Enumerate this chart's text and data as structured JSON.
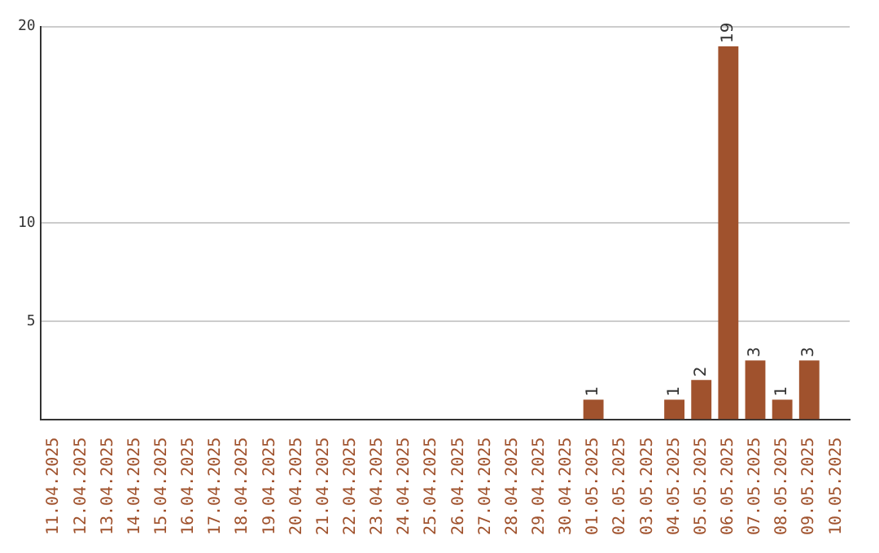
{
  "chart_data": {
    "type": "bar",
    "categories": [
      "11.04.2025",
      "12.04.2025",
      "13.04.2025",
      "14.04.2025",
      "15.04.2025",
      "16.04.2025",
      "17.04.2025",
      "18.04.2025",
      "19.04.2025",
      "20.04.2025",
      "21.04.2025",
      "22.04.2025",
      "23.04.2025",
      "24.04.2025",
      "25.04.2025",
      "26.04.2025",
      "27.04.2025",
      "28.04.2025",
      "29.04.2025",
      "30.04.2025",
      "01.05.2025",
      "02.05.2025",
      "03.05.2025",
      "04.05.2025",
      "05.05.2025",
      "06.05.2025",
      "07.05.2025",
      "08.05.2025",
      "09.05.2025",
      "10.05.2025"
    ],
    "values": [
      0,
      0,
      0,
      0,
      0,
      0,
      0,
      0,
      0,
      0,
      0,
      0,
      0,
      0,
      0,
      0,
      0,
      0,
      0,
      0,
      1,
      0,
      0,
      1,
      2,
      19,
      3,
      1,
      3,
      0
    ],
    "value_labels": [
      null,
      null,
      null,
      null,
      null,
      null,
      null,
      null,
      null,
      null,
      null,
      null,
      null,
      null,
      null,
      null,
      null,
      null,
      null,
      null,
      "1",
      null,
      null,
      "1",
      "2",
      "19",
      "3",
      "1",
      "3",
      null
    ],
    "color": "#a0522d",
    "ylim": [
      0,
      20
    ],
    "yticks": [
      5,
      10,
      20
    ],
    "grid": "y",
    "legend": false
  }
}
